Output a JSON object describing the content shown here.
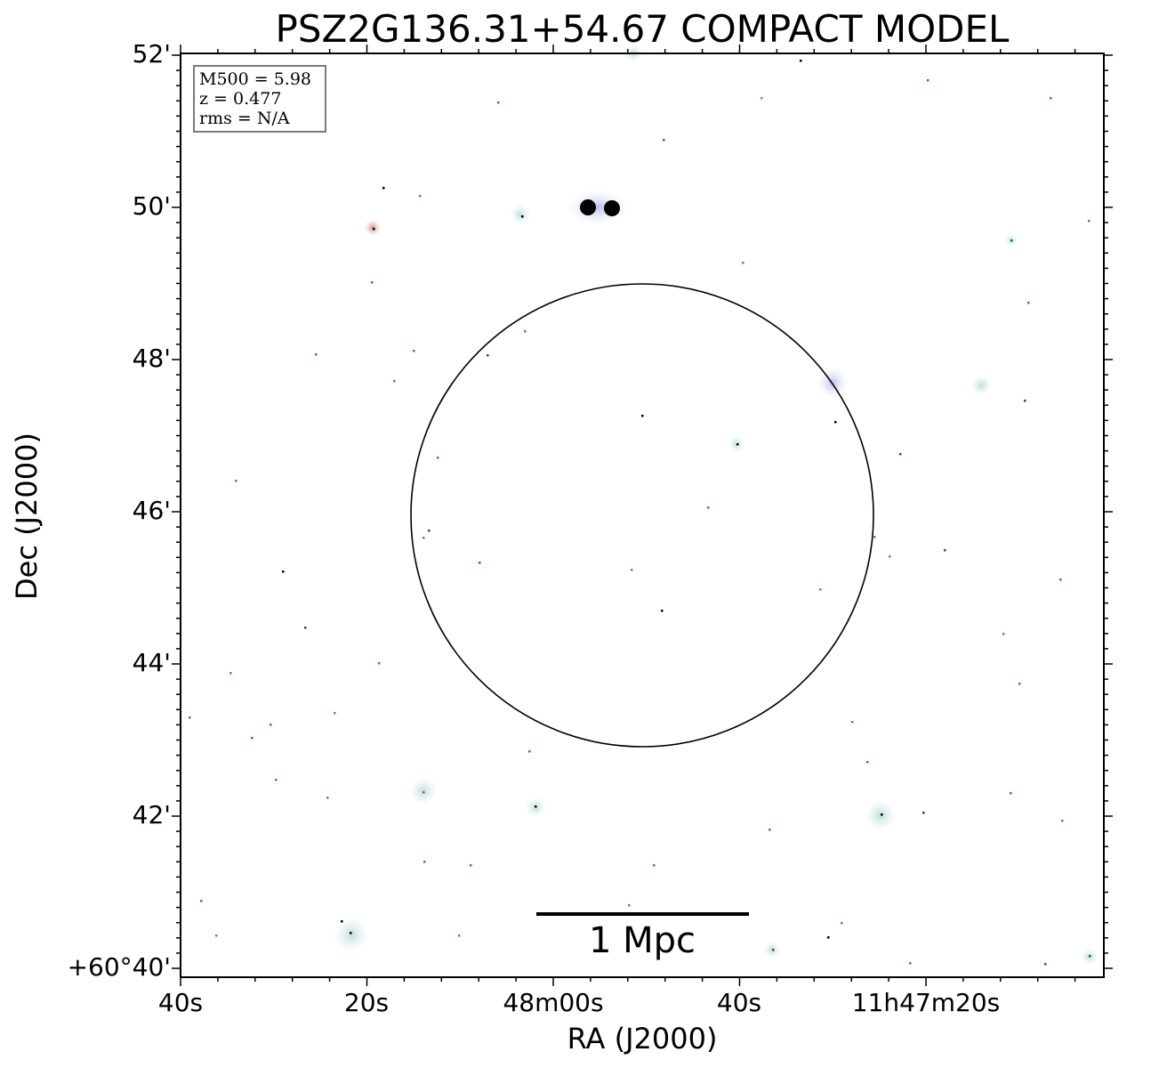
{
  "title": "PSZ2G136.31+54.67 COMPACT MODEL",
  "info_box": {
    "line1": "M500 = 5.98",
    "line2": "z = 0.477",
    "line3": "rms = N/A"
  },
  "axes": {
    "xlabel": "RA (J2000)",
    "ylabel": "Dec (J2000)",
    "x_tick_labels": [
      "40s",
      "20s",
      "48m00s",
      "40s",
      "11h47m20s"
    ],
    "y_tick_labels": [
      "52'",
      "50'",
      "48'",
      "46'",
      "44'",
      "42'",
      "+60°40'"
    ]
  },
  "scale_bar": {
    "label": "1 Mpc"
  },
  "colors": {
    "background": "#ffffff",
    "frame": "#000000",
    "circle": "#000000",
    "halo": "#cfe6e3"
  }
}
